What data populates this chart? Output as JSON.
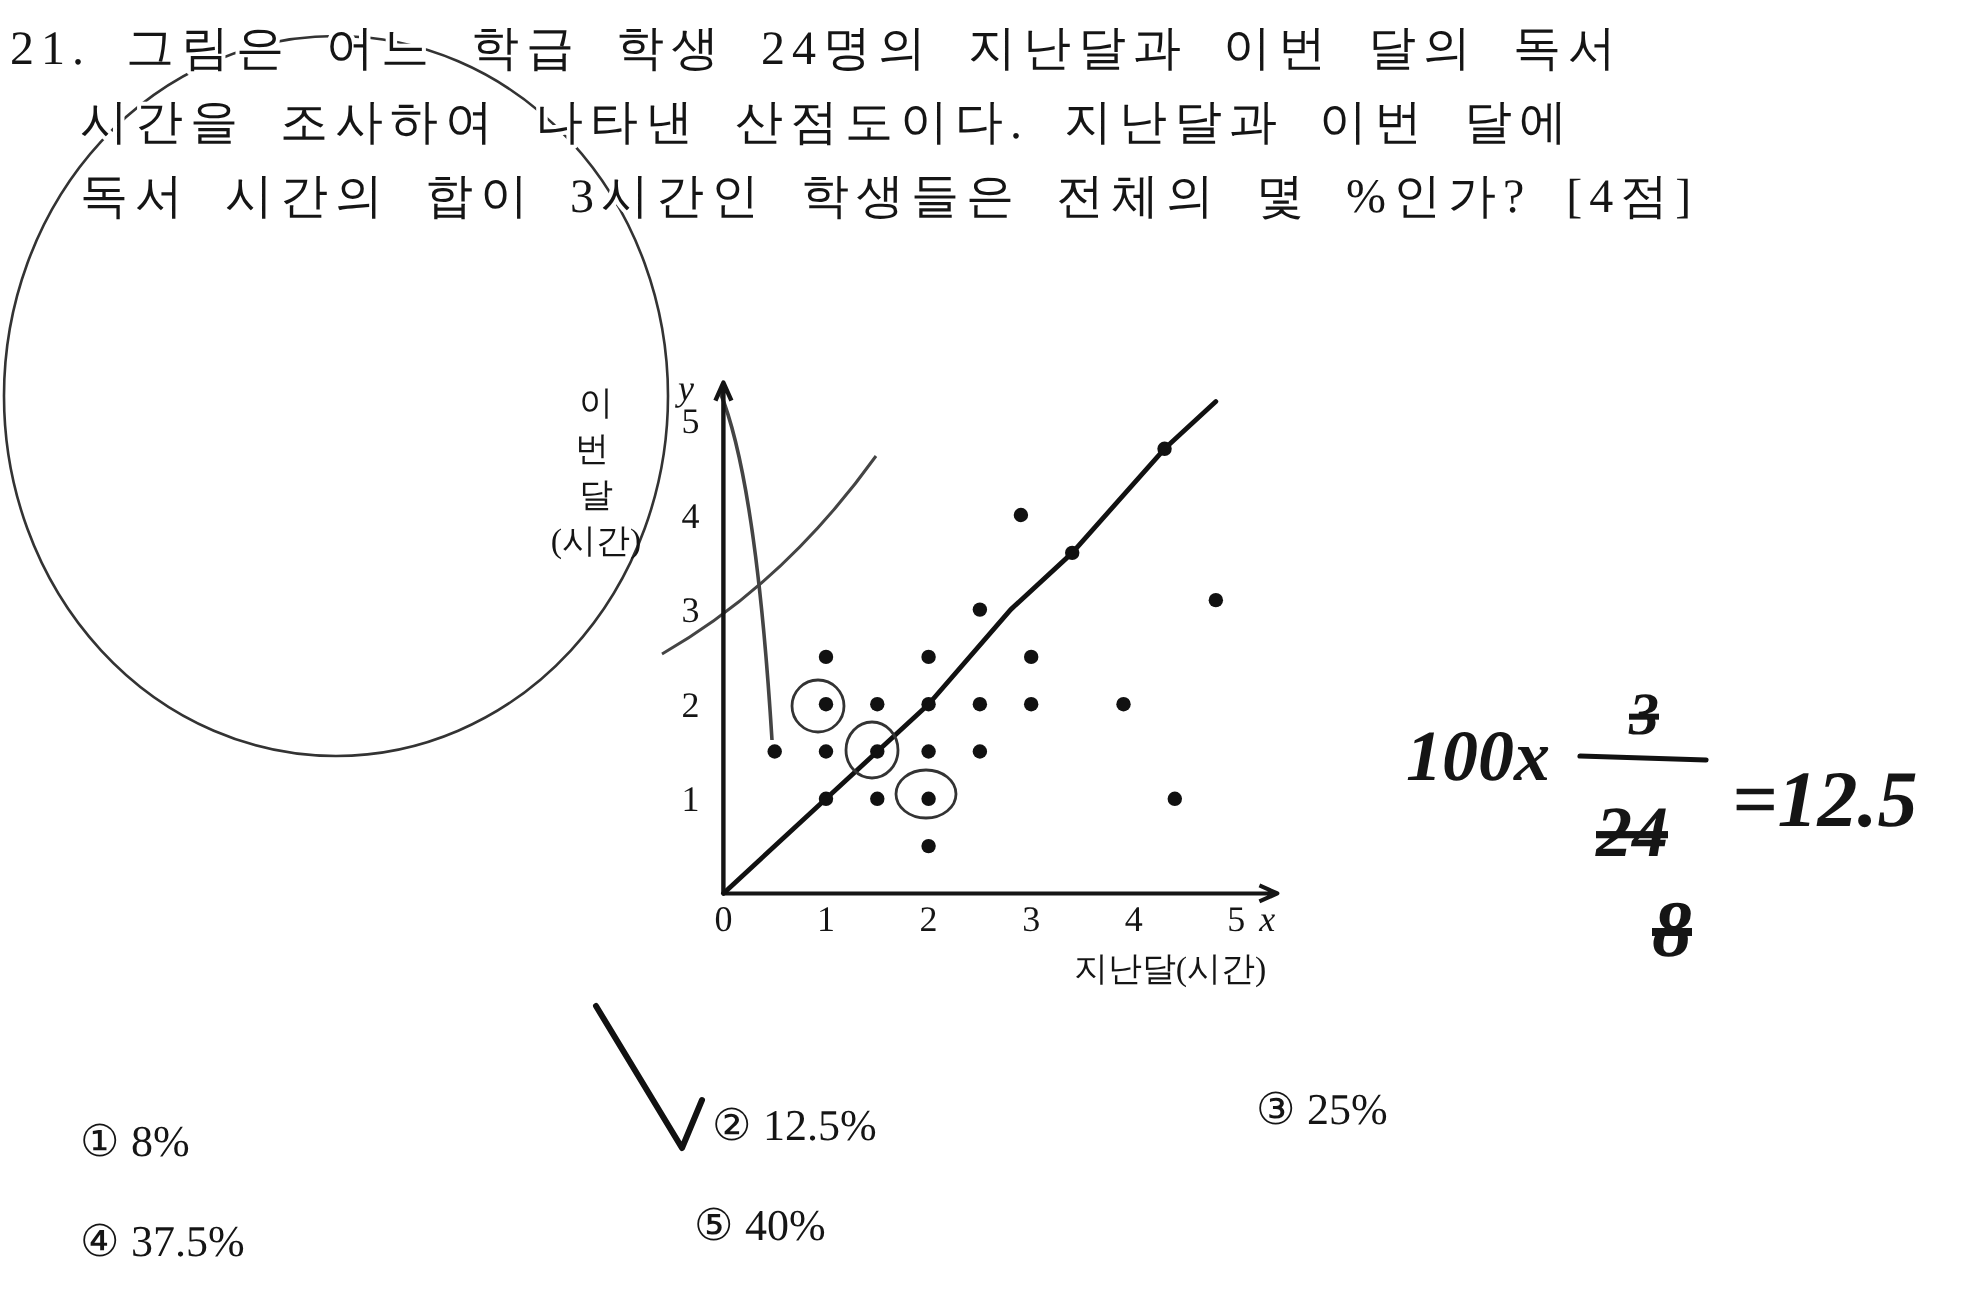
{
  "chart_data": {
    "type": "scatter",
    "title": "21. 그림은 어느 학급 학생 24명의 지난달과 이번 달의 독서 시간을 조사하여 나타낸 산점도이다. 지난달과 이번 달에 독서 시간의 합이 3시간인 학생들은 전체의 몇 %인가? [4점]",
    "xlabel": "지난달(시간)",
    "ylabel": "이번 달(시간)",
    "xlim": [
      0,
      5.4
    ],
    "ylim": [
      0,
      5.4
    ],
    "xticks": [
      0,
      1,
      2,
      3,
      4,
      5
    ],
    "yticks": [
      1,
      2,
      3,
      4,
      5
    ],
    "series": [
      {
        "marker": "circle",
        "color": "#111111",
        "x": [
          0.5,
          1,
          1,
          1,
          1,
          1.5,
          1.5,
          1.5,
          2,
          2,
          2,
          2,
          2,
          2.5,
          2.5,
          2.5,
          2.9,
          3,
          3,
          3.4,
          3.9,
          4.4,
          4.3,
          4.8
        ],
        "values": [
          1.5,
          2.5,
          2,
          1.5,
          1,
          2,
          1.5,
          1,
          2.5,
          2,
          1.5,
          1,
          0.5,
          3,
          2,
          1.5,
          4,
          2.5,
          2,
          3.6,
          2,
          1,
          4.7,
          3.1
        ]
      },
      {
        "type": "line",
        "color": "#111111",
        "x": [
          0,
          1,
          2,
          2.8,
          3.4,
          4.3,
          4.8
        ],
        "values": [
          0,
          1,
          2,
          3,
          3.6,
          4.7,
          5.2
        ]
      }
    ],
    "annotations": [
      "① 8%",
      "② 12.5%",
      "③ 25%",
      "④ 37.5%",
      "⑤ 40%",
      "100x",
      "3",
      "24",
      "8",
      "=12.5",
      "y",
      {
        "text": "x",
        "x": 5.3,
        "y": 0
      }
    ]
  }
}
